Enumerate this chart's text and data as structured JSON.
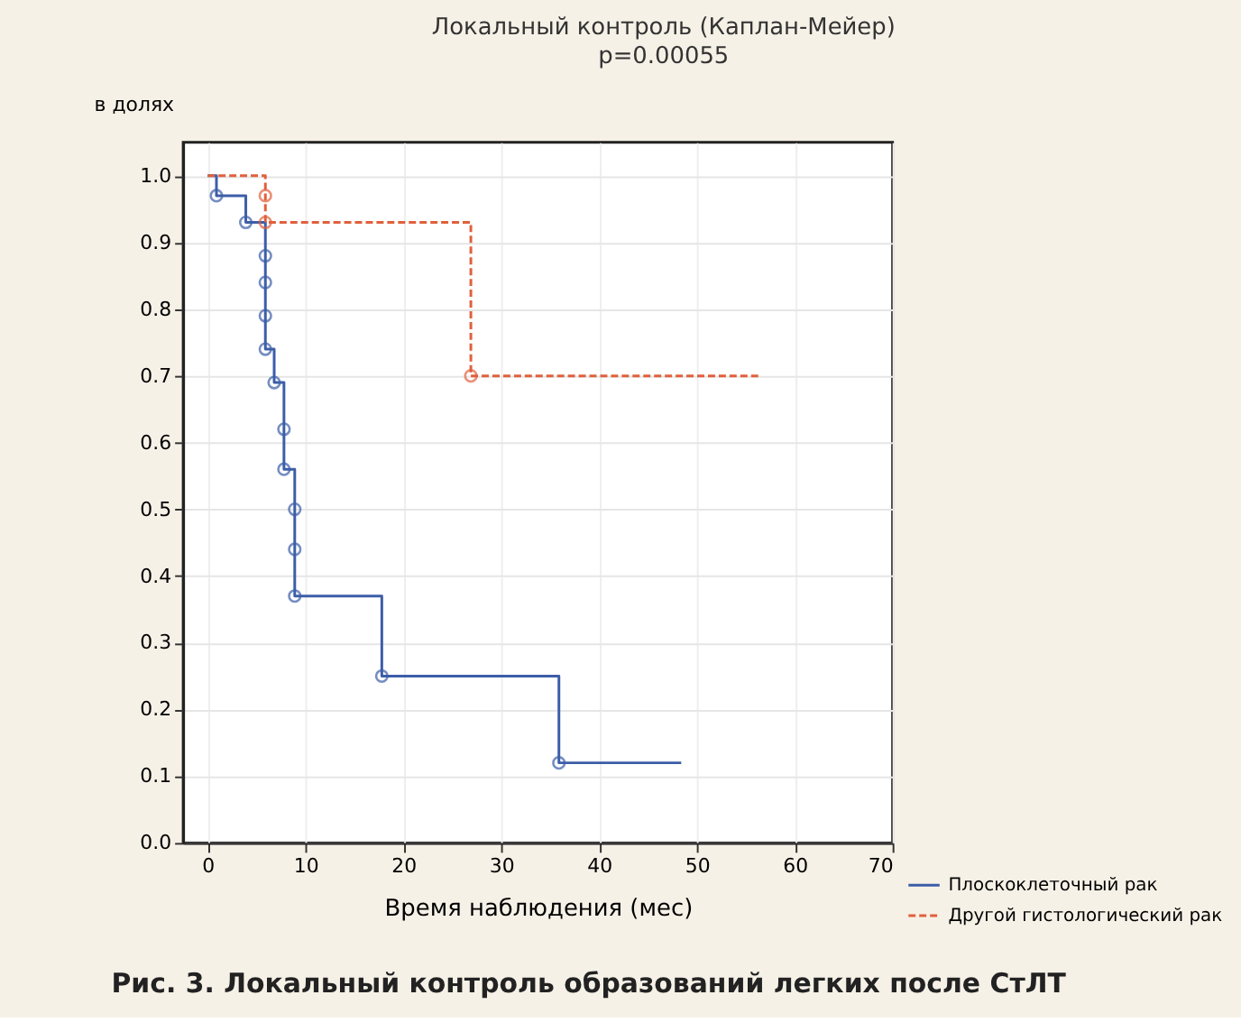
{
  "chart_data": {
    "type": "step",
    "title": "Локальный контроль (Каплан-Мейер)",
    "subtitle": "p=0.00055",
    "ylabel": "в долях",
    "xlabel": "Время наблюдения (мес)",
    "series": [
      {
        "name": "Плоскоклеточный рак",
        "color": "#3c5ea8",
        "line_style": "solid",
        "x": [
          0,
          0.9,
          3.9,
          5.9,
          5.9,
          5.9,
          5.9,
          6.8,
          7.8,
          7.8,
          8.9,
          8.9,
          8.9,
          17.8,
          35.9,
          48.4
        ],
        "values": [
          1.0,
          0.97,
          0.93,
          0.88,
          0.84,
          0.79,
          0.74,
          0.69,
          0.62,
          0.56,
          0.5,
          0.44,
          0.37,
          0.25,
          0.12,
          0.12
        ]
      },
      {
        "name": "Другой гистологический рак",
        "color": "#e0603c",
        "line_style": "dashed",
        "x": [
          0,
          5.9,
          5.9,
          26.9,
          56.4
        ],
        "values": [
          1.0,
          0.97,
          0.93,
          0.7,
          0.7
        ]
      }
    ],
    "marker": "circle",
    "xlim": [
      -2.5,
      70
    ],
    "xticks": [
      0,
      10,
      20,
      30,
      40,
      50,
      60,
      70
    ],
    "ylim": [
      0,
      1.05
    ],
    "yticks": [
      {
        "value": 0,
        "label": "0.0"
      },
      0.1,
      0.2,
      0.3,
      0.4,
      0.5,
      0.6,
      0.7,
      0.8,
      0.9,
      {
        "value": 1,
        "label": "1.0"
      }
    ],
    "grid": true,
    "legend": "bottom right",
    "annotations": [
      "Рис. 3. Локальный контроль образований легких после СтЛТ"
    ]
  }
}
